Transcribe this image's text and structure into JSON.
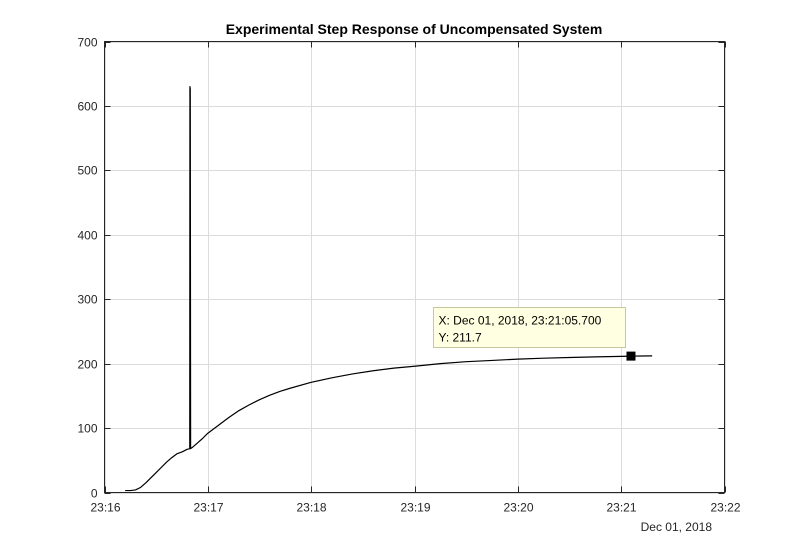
{
  "chart_data": {
    "type": "line",
    "title": "Experimental Step Response of Uncompensated System",
    "xlabel": "",
    "ylabel": "",
    "x_secondary_label": "Dec 01, 2018",
    "x_unit": "time of day (Dec 01, 2018)",
    "xlim": [
      "23:16",
      "23:22"
    ],
    "ylim": [
      0,
      700
    ],
    "x_ticks": [
      "23:16",
      "23:17",
      "23:18",
      "23:19",
      "23:20",
      "23:21",
      "23:22"
    ],
    "y_ticks": [
      0,
      100,
      200,
      300,
      400,
      500,
      600,
      700
    ],
    "grid": true,
    "series": [
      {
        "color": "#000000",
        "x": [
          "23:16:12",
          "23:16:15",
          "23:16:18",
          "23:16:21",
          "23:16:24",
          "23:16:27",
          "23:16:30",
          "23:16:33",
          "23:16:36",
          "23:16:39",
          "23:16:42",
          "23:16:45",
          "23:16:48",
          "23:16:49.5",
          "23:16:49.6",
          "23:16:49.8",
          "23:16:50",
          "23:16:51",
          "23:16:54",
          "23:16:57",
          "23:17:00",
          "23:17:06",
          "23:17:12",
          "23:17:18",
          "23:17:24",
          "23:17:30",
          "23:17:36",
          "23:17:42",
          "23:17:48",
          "23:18:00",
          "23:18:12",
          "23:18:24",
          "23:18:36",
          "23:18:48",
          "23:19:00",
          "23:19:15",
          "23:19:30",
          "23:19:45",
          "23:20:00",
          "23:20:15",
          "23:20:30",
          "23:20:45",
          "23:21:00",
          "23:21:05.7",
          "23:21:12",
          "23:21:18"
        ],
        "y": [
          3,
          3,
          4,
          8,
          15,
          23,
          31,
          39,
          47,
          54,
          60,
          63,
          67,
          68,
          630,
          626,
          68,
          70,
          77,
          84,
          92,
          104,
          116,
          127,
          136,
          144,
          151,
          157,
          162,
          171,
          178,
          184,
          189,
          193,
          196,
          200,
          203,
          205,
          207,
          208.5,
          209.5,
          210.5,
          211.3,
          211.7,
          211.9,
          212
        ]
      }
    ],
    "datatip": {
      "x_text": "X: Dec 01, 2018, 23:21:05.700",
      "y_text": "Y: 211.7",
      "x": "23:21:05.7",
      "y": 211.7
    }
  }
}
